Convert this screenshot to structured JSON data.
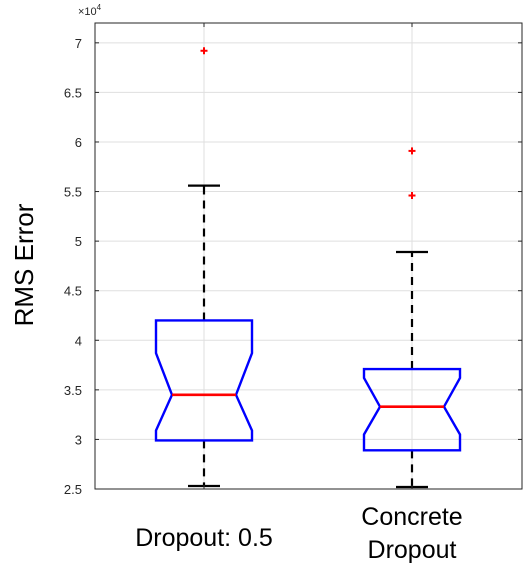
{
  "chart_data": {
    "type": "boxplot",
    "notched": true,
    "ylabel": "RMS Error",
    "y_exponent_label": "×10",
    "y_exponent_power": "4",
    "ylim": [
      25000,
      72000
    ],
    "yticks": [
      25000,
      30000,
      35000,
      40000,
      45000,
      50000,
      55000,
      60000,
      65000,
      70000
    ],
    "ytick_labels": [
      "2.5",
      "3",
      "3.5",
      "4",
      "4.5",
      "5",
      "5.5",
      "6",
      "6.5",
      "7"
    ],
    "grid": true,
    "categories": [
      {
        "lines": [
          "Dropout: 0.5"
        ]
      },
      {
        "lines": [
          "Concrete",
          "Dropout"
        ]
      }
    ],
    "boxes": [
      {
        "whisker_low": 25300,
        "q1": 29900,
        "median": 34500,
        "q3": 42000,
        "whisker_high": 55600,
        "notch_low": 30900,
        "notch_high": 38700,
        "outliers": [
          69200
        ]
      },
      {
        "whisker_low": 25200,
        "q1": 28900,
        "median": 33300,
        "q3": 37100,
        "whisker_high": 48900,
        "notch_low": 30500,
        "notch_high": 36200,
        "outliers": [
          59100,
          54600
        ]
      }
    ],
    "colors": {
      "box": "#0000ff",
      "median": "#ff0000",
      "whisker": "#000000",
      "outlier": "#ff0000",
      "grid": "#dfdfdf",
      "axis": "#262626"
    }
  }
}
